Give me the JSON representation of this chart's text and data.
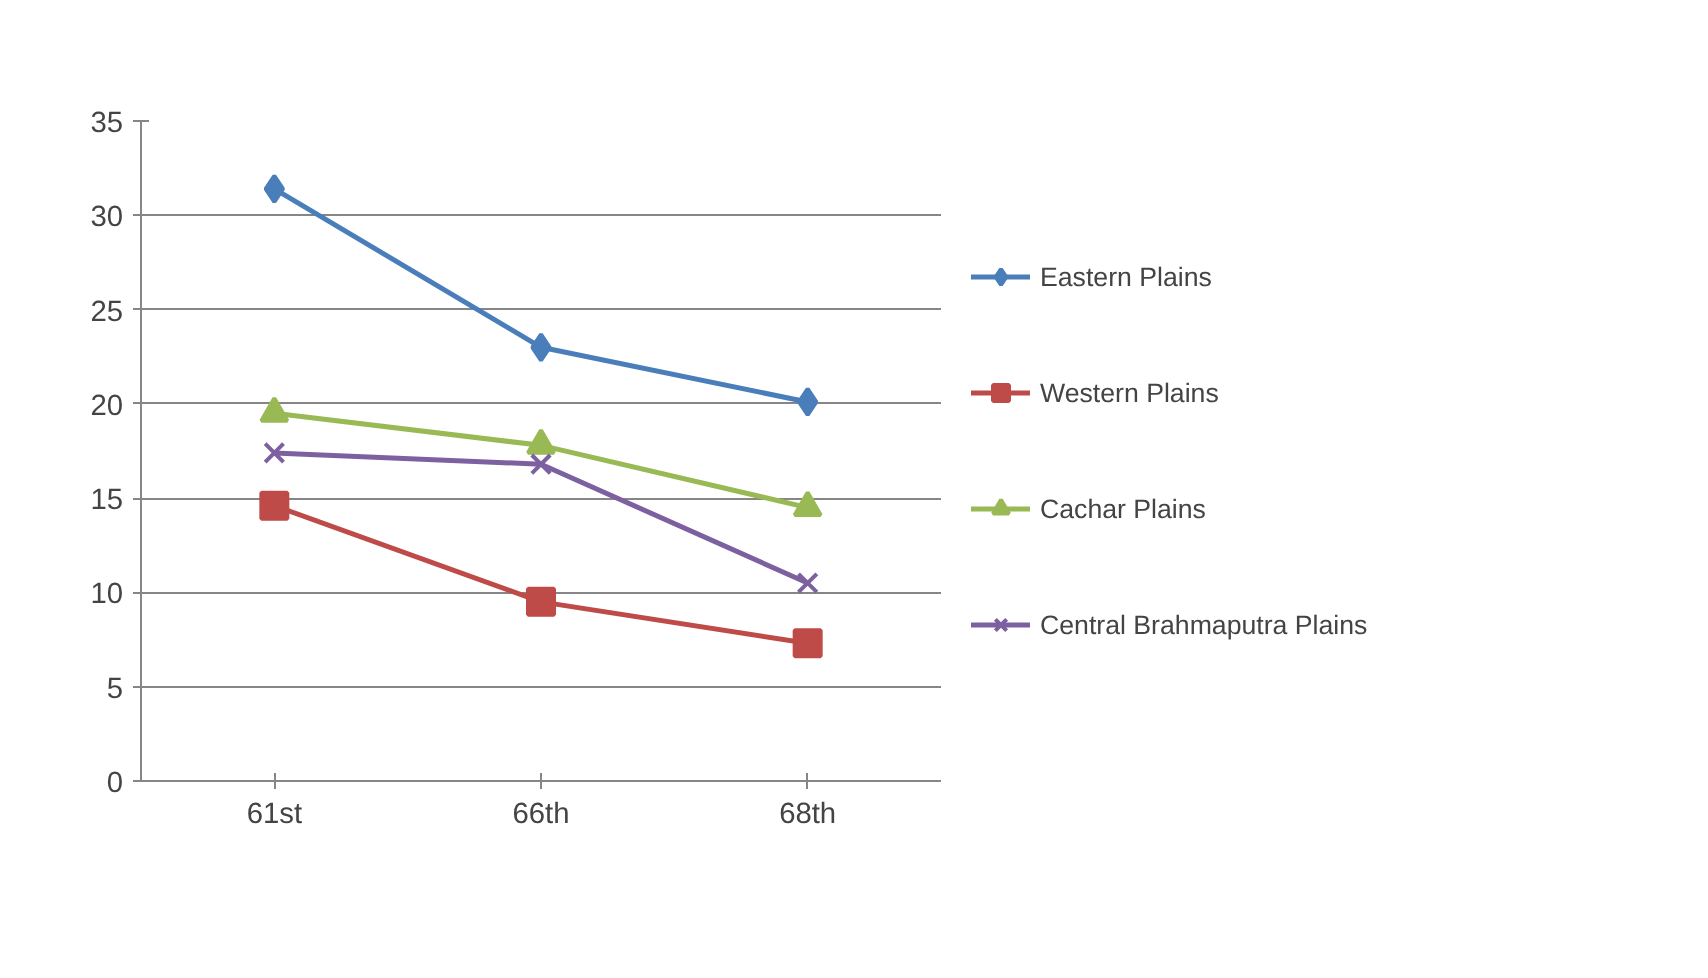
{
  "chart_data": {
    "type": "line",
    "categories": [
      "61st",
      "66th",
      "68th"
    ],
    "series": [
      {
        "name": "Eastern Plains",
        "color": "#4a7ebb",
        "marker": "diamond",
        "values": [
          31.4,
          23.0,
          20.1
        ]
      },
      {
        "name": "Western Plains",
        "color": "#be4b48",
        "marker": "square",
        "values": [
          14.6,
          9.5,
          7.3
        ]
      },
      {
        "name": "Cachar Plains",
        "color": "#98b954",
        "marker": "triangle",
        "values": [
          19.5,
          17.8,
          14.5
        ]
      },
      {
        "name": "Central Brahmaputra Plains",
        "color": "#7d60a0",
        "marker": "cross",
        "values": [
          17.4,
          16.8,
          10.5
        ]
      }
    ],
    "ylim": [
      0,
      35
    ],
    "yticks": [
      0,
      5,
      10,
      15,
      20,
      25,
      30,
      35
    ],
    "grid": "y",
    "legend": "right",
    "line_style": "solid"
  }
}
